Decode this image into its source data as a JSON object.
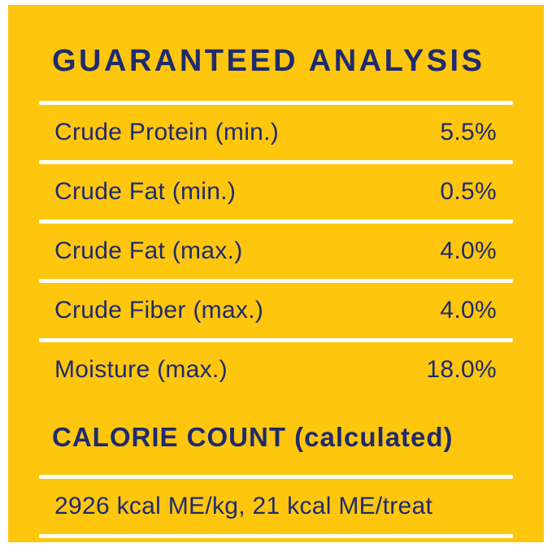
{
  "label": {
    "title": "GUARANTEED ANALYSIS",
    "rows": [
      {
        "name": "Crude Protein (min.)",
        "value": "5.5%"
      },
      {
        "name": "Crude Fat (min.)",
        "value": "0.5%"
      },
      {
        "name": "Crude Fat (max.)",
        "value": "4.0%"
      },
      {
        "name": "Crude Fiber (max.)",
        "value": "4.0%"
      },
      {
        "name": "Moisture (max.)",
        "value": "18.0%"
      }
    ],
    "calorie_heading": "CALORIE COUNT (calculated)",
    "calorie_text": "2926 kcal ME/kg, 21 kcal ME/treat",
    "colors": {
      "background": "#ffc60e",
      "text": "#1e2b6d",
      "divider": "#ffffff",
      "frame": "#ffffff"
    }
  }
}
